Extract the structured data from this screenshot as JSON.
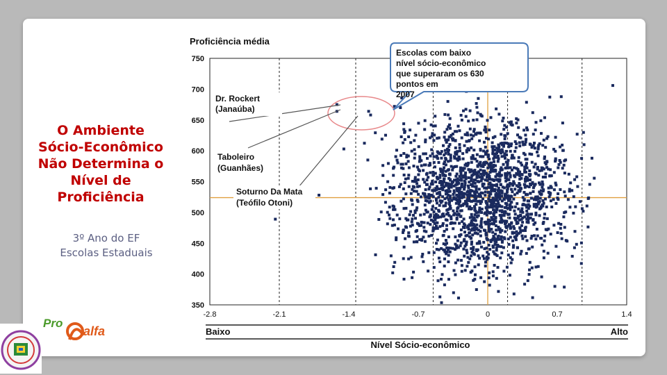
{
  "slide": {
    "title_lines": [
      "O Ambiente",
      "Sócio-Econômico",
      "Não Determina o",
      "Nível de",
      "Proficiência"
    ],
    "subtitle_lines": [
      "3º Ano do EF",
      "Escolas Estaduais"
    ],
    "logo_text": {
      "pro": "Pro",
      "alfa": "alfa"
    }
  },
  "colors": {
    "title": "#c00000",
    "subtitle": "#5b5f82",
    "points": "#1a2a5e",
    "mean_lines": "#e0a040",
    "ellipse": "#e8888a"
  },
  "chart_data": {
    "type": "scatter",
    "ylabel": "Proficiência média",
    "xlabel": "Nível Sócio-econômico",
    "x_low_label": "Baixo",
    "x_high_label": "Alto",
    "xlim": [
      -2.8,
      1.4
    ],
    "ylim": [
      350,
      750
    ],
    "xticks": [
      -2.8,
      -2.1,
      -1.4,
      -0.7,
      0,
      0.7,
      1.4
    ],
    "xtick_labels": [
      "-2.8",
      "-2.1",
      "-1.4",
      "-0.7",
      "0",
      "0.7",
      "1.4"
    ],
    "yticks": [
      350,
      400,
      450,
      500,
      550,
      600,
      650,
      700,
      750
    ],
    "ytick_labels": [
      "350",
      "400",
      "450",
      "500",
      "550",
      "600",
      "650",
      "700",
      "750"
    ],
    "mean_x": 0,
    "mean_y": 524,
    "dashed_x": [
      -2.1,
      -1.33,
      -0.55,
      0.2,
      0.95
    ],
    "grid": false,
    "callout": "Escolas com baixo nível sócio-econômico que superaram os 630 pontos em 2007",
    "annotations": [
      {
        "lines": [
          "Dr. Rockert",
          "(Janaúba)"
        ],
        "x": -1.5,
        "y": 670
      },
      {
        "lines": [
          "Taboleiro",
          "(Guanhães)"
        ],
        "x": -1.2,
        "y": 665
      },
      {
        "lines": [
          "Soturno Da Mata",
          "(Teófilo Otoni)"
        ],
        "x": -1.2,
        "y": 660
      }
    ],
    "highlight_points": [
      {
        "x": -1.52,
        "y": 675
      },
      {
        "x": -1.52,
        "y": 664
      },
      {
        "x": -1.2,
        "y": 664
      },
      {
        "x": -1.18,
        "y": 658
      },
      {
        "x": -0.94,
        "y": 672
      },
      {
        "x": -0.88,
        "y": 670
      }
    ],
    "outlier_points": [
      {
        "x": 1.26,
        "y": 706
      },
      {
        "x": -2.14,
        "y": 489
      },
      {
        "x": -1.7,
        "y": 528
      },
      {
        "x": -1.45,
        "y": 603
      },
      {
        "x": 1.05,
        "y": 588
      },
      {
        "x": 0.97,
        "y": 610
      }
    ],
    "cloud": {
      "count": 1900,
      "center_x": -0.05,
      "center_y": 530,
      "sd_x": 0.42,
      "sd_y": 62
    }
  }
}
